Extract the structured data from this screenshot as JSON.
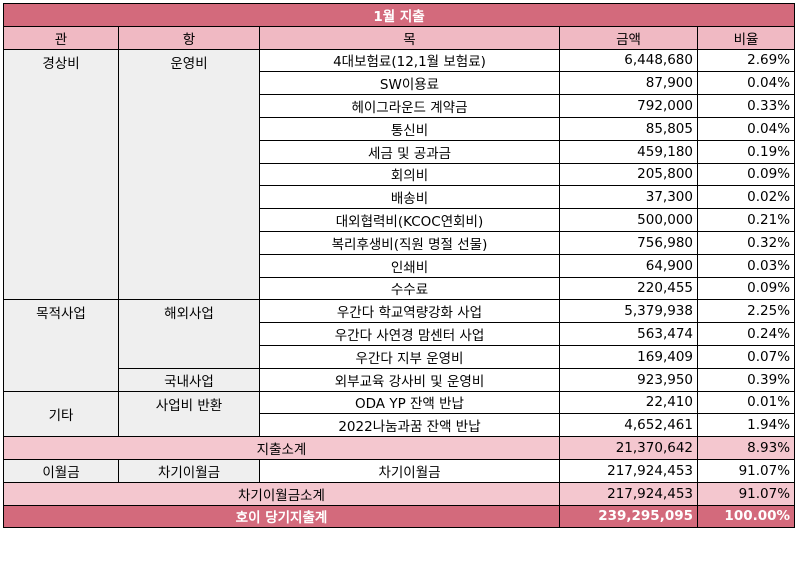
{
  "title": "1월 지출",
  "headers": {
    "gwan": "관",
    "hang": "항",
    "mok": "목",
    "amount": "금액",
    "ratio": "비율"
  },
  "groups": {
    "g1": {
      "gwan": "경상비",
      "hang": "운영비"
    },
    "g2": {
      "gwan": "목적사업",
      "hang1": "해외사업",
      "hang2": "국내사업"
    },
    "g3": {
      "gwan": "기타",
      "hang": "사업비 반환"
    }
  },
  "rows": [
    {
      "mok": "4대보험료(12,1월 보험료)",
      "amount": "6,448,680",
      "ratio": "2.69%"
    },
    {
      "mok": "SW이용료",
      "amount": "87,900",
      "ratio": "0.04%"
    },
    {
      "mok": "헤이그라운드 계약금",
      "amount": "792,000",
      "ratio": "0.33%"
    },
    {
      "mok": "통신비",
      "amount": "85,805",
      "ratio": "0.04%"
    },
    {
      "mok": "세금 및 공과금",
      "amount": "459,180",
      "ratio": "0.19%"
    },
    {
      "mok": "회의비",
      "amount": "205,800",
      "ratio": "0.09%"
    },
    {
      "mok": "배송비",
      "amount": "37,300",
      "ratio": "0.02%"
    },
    {
      "mok": "대외협력비(KCOC연회비)",
      "amount": "500,000",
      "ratio": "0.21%"
    },
    {
      "mok": "복리후생비(직원 명절 선물)",
      "amount": "756,980",
      "ratio": "0.32%"
    },
    {
      "mok": "인쇄비",
      "amount": "64,900",
      "ratio": "0.03%"
    },
    {
      "mok": "수수료",
      "amount": "220,455",
      "ratio": "0.09%"
    },
    {
      "mok": "우간다 학교역량강화 사업",
      "amount": "5,379,938",
      "ratio": "2.25%"
    },
    {
      "mok": "우간다 사연경 맘센터 사업",
      "amount": "563,474",
      "ratio": "0.24%"
    },
    {
      "mok": "우간다 지부 운영비",
      "amount": "169,409",
      "ratio": "0.07%"
    },
    {
      "mok": "외부교육 강사비 및 운영비",
      "amount": "923,950",
      "ratio": "0.39%"
    },
    {
      "mok": "ODA YP 잔액 반납",
      "amount": "22,410",
      "ratio": "0.01%"
    },
    {
      "mok": "2022나눔과꿈 잔액 반납",
      "amount": "4,652,461",
      "ratio": "1.94%"
    }
  ],
  "subtotal": {
    "label": "지출소계",
    "amount": "21,370,642",
    "ratio": "8.93%"
  },
  "carry": {
    "gwan": "이월금",
    "hang": "차기이월금",
    "mok": "차기이월금",
    "amount": "217,924,453",
    "ratio": "91.07%"
  },
  "carry_subtotal": {
    "label": "차기이월금소계",
    "amount": "217,924,453",
    "ratio": "91.07%"
  },
  "total": {
    "label": "호이 당기지출계",
    "amount": "239,295,095",
    "ratio": "100.00%"
  }
}
